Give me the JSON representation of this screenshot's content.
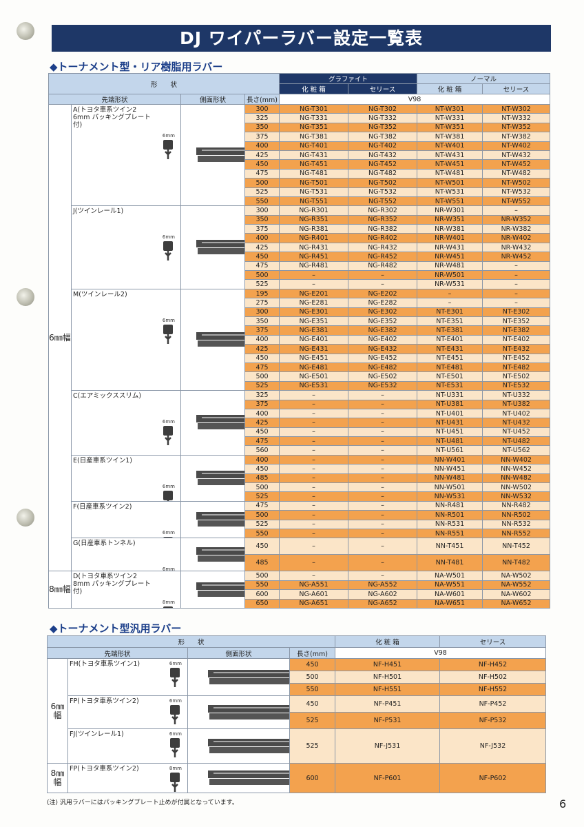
{
  "title": "DJ ワイパーラバー設定一覧表",
  "colors": {
    "title_bg": "#1e3767",
    "header_bg": "#c3d6eb",
    "row_orange": "#f3a24e",
    "row_light": "#fbe5c8",
    "section_heading": "#1c3f8a"
  },
  "table1": {
    "heading": "◆トーナメント型・リア樹脂用ラバー",
    "header": {
      "shape": "形　　状",
      "graphite": "グラファイト",
      "normal": "ノーマル",
      "box": "化 粧 箱",
      "box2": "化 粧 箱",
      "serries": "セリース",
      "serries2": "セリース",
      "tip": "先端形状",
      "side": "側面形状",
      "length": "長さ(mm)",
      "v98": "V98"
    },
    "width_groups": [
      {
        "label": "6㎜幅",
        "shapes": [
          {
            "name": "A(トヨタ車系ツイン2 6mm パッキングプレート付)",
            "size": "6mm",
            "rows": [
              [
                "300",
                "NG-T301",
                "NG-T302",
                "NT-W301",
                "NT-W302"
              ],
              [
                "325",
                "NG-T331",
                "NG-T332",
                "NT-W331",
                "NT-W332"
              ],
              [
                "350",
                "NG-T351",
                "NG-T352",
                "NT-W351",
                "NT-W352"
              ],
              [
                "375",
                "NG-T381",
                "NG-T382",
                "NT-W381",
                "NT-W382"
              ],
              [
                "400",
                "NG-T401",
                "NG-T402",
                "NT-W401",
                "NT-W402"
              ],
              [
                "425",
                "NG-T431",
                "NG-T432",
                "NT-W431",
                "NT-W432"
              ],
              [
                "450",
                "NG-T451",
                "NG-T452",
                "NT-W451",
                "NT-W452"
              ],
              [
                "475",
                "NG-T481",
                "NG-T482",
                "NT-W481",
                "NT-W482"
              ],
              [
                "500",
                "NG-T501",
                "NG-T502",
                "NT-W501",
                "NT-W502"
              ],
              [
                "525",
                "NG-T531",
                "NG-T532",
                "NT-W531",
                "NT-W532"
              ],
              [
                "550",
                "NG-T551",
                "NG-T552",
                "NT-W551",
                "NT-W552"
              ]
            ]
          },
          {
            "name": "J(ツインレール1)",
            "size": "6mm",
            "rows": [
              [
                "300",
                "NG-R301",
                "NG-R302",
                "NR-W301",
                "–"
              ],
              [
                "350",
                "NG-R351",
                "NG-R352",
                "NR-W351",
                "NR-W352"
              ],
              [
                "375",
                "NG-R381",
                "NG-R382",
                "NR-W381",
                "NR-W382"
              ],
              [
                "400",
                "NG-R401",
                "NG-R402",
                "NR-W401",
                "NR-W402"
              ],
              [
                "425",
                "NG-R431",
                "NG-R432",
                "NR-W431",
                "NR-W432"
              ],
              [
                "450",
                "NG-R451",
                "NG-R452",
                "NR-W451",
                "NR-W452"
              ],
              [
                "475",
                "NG-R481",
                "NG-R482",
                "NR-W481",
                "–"
              ],
              [
                "500",
                "–",
                "–",
                "NR-W501",
                "–"
              ],
              [
                "525",
                "–",
                "–",
                "NR-W531",
                "–"
              ]
            ]
          },
          {
            "name": "M(ツインレール2)",
            "size": "6mm",
            "rows": [
              [
                "195",
                "NG-E201",
                "NG-E202",
                "–",
                "–"
              ],
              [
                "275",
                "NG-E281",
                "NG-E282",
                "–",
                "–"
              ],
              [
                "300",
                "NG-E301",
                "NG-E302",
                "NT-E301",
                "NT-E302"
              ],
              [
                "350",
                "NG-E351",
                "NG-E352",
                "NT-E351",
                "NT-E352"
              ],
              [
                "375",
                "NG-E381",
                "NG-E382",
                "NT-E381",
                "NT-E382"
              ],
              [
                "400",
                "NG-E401",
                "NG-E402",
                "NT-E401",
                "NT-E402"
              ],
              [
                "425",
                "NG-E431",
                "NG-E432",
                "NT-E431",
                "NT-E432"
              ],
              [
                "450",
                "NG-E451",
                "NG-E452",
                "NT-E451",
                "NT-E452"
              ],
              [
                "475",
                "NG-E481",
                "NG-E482",
                "NT-E481",
                "NT-E482"
              ],
              [
                "500",
                "NG-E501",
                "NG-E502",
                "NT-E501",
                "NT-E502"
              ],
              [
                "525",
                "NG-E531",
                "NG-E532",
                "NT-E531",
                "NT-E532"
              ]
            ]
          },
          {
            "name": "C(エアミックススリム)",
            "size": "6mm",
            "rows": [
              [
                "325",
                "–",
                "–",
                "NT-U331",
                "NT-U332"
              ],
              [
                "375",
                "–",
                "–",
                "NT-U381",
                "NT-U382"
              ],
              [
                "400",
                "–",
                "–",
                "NT-U401",
                "NT-U402"
              ],
              [
                "425",
                "–",
                "–",
                "NT-U431",
                "NT-U432"
              ],
              [
                "450",
                "–",
                "–",
                "NT-U451",
                "NT-U452"
              ],
              [
                "475",
                "–",
                "–",
                "NT-U481",
                "NT-U482"
              ],
              [
                "560",
                "–",
                "–",
                "NT-U561",
                "NT-U562"
              ]
            ]
          },
          {
            "name": "E(日産車系ツイン1)",
            "size": "6mm",
            "rows": [
              [
                "400",
                "–",
                "–",
                "NN-W401",
                "NN-W402"
              ],
              [
                "450",
                "–",
                "–",
                "NN-W451",
                "NN-W452"
              ],
              [
                "485",
                "–",
                "–",
                "NN-W481",
                "NN-W482"
              ],
              [
                "500",
                "–",
                "–",
                "NN-W501",
                "NN-W502"
              ],
              [
                "525",
                "–",
                "–",
                "NN-W531",
                "NN-W532"
              ]
            ]
          },
          {
            "name": "F(日産車系ツイン2)",
            "size": "6mm",
            "rows": [
              [
                "475",
                "–",
                "–",
                "NN-R481",
                "NN-R482"
              ],
              [
                "500",
                "–",
                "–",
                "NN-R501",
                "NN-R502"
              ],
              [
                "525",
                "–",
                "–",
                "NN-R531",
                "NN-R532"
              ],
              [
                "550",
                "–",
                "–",
                "NN-R551",
                "NN-R552"
              ]
            ]
          },
          {
            "name": "G(日産車系トンネル)",
            "size": "6mm",
            "tall": true,
            "rows": [
              [
                "450",
                "–",
                "–",
                "NN-T451",
                "NN-T452"
              ],
              [
                "485",
                "–",
                "–",
                "NN-T481",
                "NN-T482"
              ]
            ]
          }
        ]
      },
      {
        "label": "8㎜幅",
        "shapes": [
          {
            "name": "D(トヨタ車系ツイン2 8mm パッキングプレート付)",
            "size": "8mm",
            "rows": [
              [
                "500",
                "–",
                "–",
                "NA-W501",
                "NA-W502"
              ],
              [
                "550",
                "NG-A551",
                "NG-A552",
                "NA-W551",
                "NA-W552"
              ],
              [
                "600",
                "NG-A601",
                "NG-A602",
                "NA-W601",
                "NA-W602"
              ],
              [
                "650",
                "NG-A651",
                "NG-A652",
                "NA-W651",
                "NA-W652"
              ]
            ]
          }
        ]
      }
    ]
  },
  "table2": {
    "heading": "◆トーナメント型汎用ラバー",
    "header": {
      "shape": "形　　状",
      "box": "化 粧 箱",
      "serries": "セリース",
      "tip": "先端形状",
      "side": "側面形状",
      "length": "長さ(mm)",
      "v98": "V98"
    },
    "width_groups": [
      {
        "label": "6㎜幅",
        "shapes": [
          {
            "name": "FH(トヨタ車系ツイン1)",
            "size": "6mm",
            "rows": [
              [
                "450",
                "NF-H451",
                "NF-H452"
              ],
              [
                "500",
                "NF-H501",
                "NF-H502"
              ],
              [
                "550",
                "NF-H551",
                "NF-H552"
              ]
            ]
          },
          {
            "name": "FP(トヨタ車系ツイン2)",
            "size": "6mm",
            "rows": [
              [
                "450",
                "NF-P451",
                "NF-P452"
              ],
              [
                "525",
                "NF-P531",
                "NF-P532"
              ]
            ]
          },
          {
            "name": "FJ(ツインレール1)",
            "size": "6mm",
            "rows": [
              [
                "525",
                "NF-J531",
                "NF-J532"
              ]
            ]
          }
        ]
      },
      {
        "label": "8㎜幅",
        "shapes": [
          {
            "name": "FP(トヨタ車系ツイン2)",
            "size": "8mm",
            "rows": [
              [
                "600",
                "NF-P601",
                "NF-P602"
              ]
            ]
          }
        ]
      }
    ],
    "note": "(注) 汎用ラバーにはパッキングプレート止めが付属となっています。"
  },
  "page_number": "6"
}
